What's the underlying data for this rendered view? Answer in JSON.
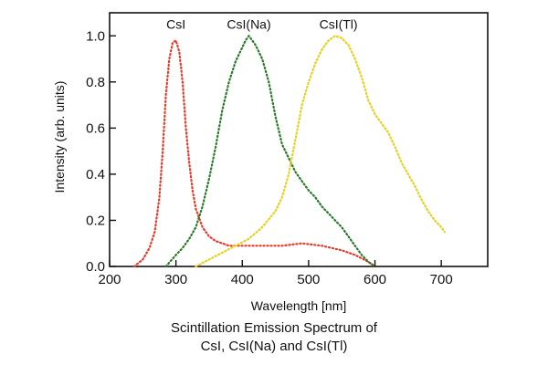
{
  "chart_data": {
    "type": "line",
    "title": "",
    "xlabel": "Wavelength [nm]",
    "ylabel": "Intensity (arb. units)",
    "xlim": [
      200,
      770
    ],
    "ylim": [
      0.0,
      1.1
    ],
    "xticks": [
      200,
      300,
      400,
      500,
      600,
      700
    ],
    "xtick_labels": [
      "200",
      "300",
      "400",
      "500",
      "600",
      "700"
    ],
    "yticks": [
      0.0,
      0.2,
      0.4,
      0.6,
      0.8,
      1.0
    ],
    "ytick_labels": [
      "0.0",
      "0.2",
      "0.4",
      "0.6",
      "0.8",
      "1.0"
    ],
    "grid": false,
    "legend": "none",
    "line_style": "dotted",
    "series": [
      {
        "name": "CsI",
        "color": "#e8392a",
        "label_at": [
          300,
          1.03
        ],
        "x": [
          237,
          250,
          260,
          268,
          275,
          280,
          285,
          290,
          295,
          300,
          305,
          310,
          315,
          320,
          325,
          330,
          340,
          350,
          360,
          370,
          380,
          400,
          430,
          460,
          490,
          520,
          550,
          570,
          590,
          600
        ],
        "y": [
          0.0,
          0.03,
          0.08,
          0.15,
          0.3,
          0.5,
          0.75,
          0.9,
          0.97,
          0.98,
          0.93,
          0.8,
          0.6,
          0.45,
          0.33,
          0.25,
          0.17,
          0.13,
          0.11,
          0.1,
          0.09,
          0.09,
          0.09,
          0.09,
          0.1,
          0.09,
          0.07,
          0.05,
          0.02,
          0.0
        ]
      },
      {
        "name": "CsI(Na)",
        "color": "#2a7a2a",
        "label_at": [
          410,
          1.03
        ],
        "x": [
          285,
          300,
          310,
          320,
          330,
          340,
          350,
          360,
          370,
          380,
          390,
          400,
          405,
          410,
          415,
          420,
          430,
          440,
          450,
          460,
          470,
          480,
          490,
          500,
          510,
          520,
          530,
          540,
          550,
          560,
          570,
          580,
          590,
          600
        ],
        "y": [
          0.0,
          0.05,
          0.08,
          0.12,
          0.17,
          0.26,
          0.38,
          0.52,
          0.68,
          0.8,
          0.89,
          0.95,
          0.98,
          1.0,
          0.98,
          0.96,
          0.9,
          0.8,
          0.65,
          0.53,
          0.47,
          0.41,
          0.37,
          0.33,
          0.3,
          0.26,
          0.23,
          0.2,
          0.17,
          0.13,
          0.09,
          0.05,
          0.02,
          0.0
        ]
      },
      {
        "name": "CsI(Tl)",
        "color": "#e6d21a",
        "label_at": [
          545,
          1.03
        ],
        "x": [
          330,
          350,
          370,
          390,
          410,
          430,
          450,
          460,
          470,
          480,
          490,
          500,
          510,
          520,
          530,
          540,
          550,
          560,
          570,
          580,
          590,
          600,
          610,
          620,
          630,
          640,
          650,
          660,
          670,
          680,
          690,
          700,
          705
        ],
        "y": [
          0.0,
          0.03,
          0.06,
          0.09,
          0.12,
          0.17,
          0.24,
          0.3,
          0.4,
          0.55,
          0.7,
          0.8,
          0.88,
          0.94,
          0.98,
          1.0,
          0.99,
          0.96,
          0.9,
          0.82,
          0.72,
          0.66,
          0.62,
          0.58,
          0.52,
          0.45,
          0.4,
          0.35,
          0.29,
          0.24,
          0.2,
          0.17,
          0.15
        ]
      }
    ]
  },
  "caption": {
    "line1": "Scintillation Emission Spectrum of",
    "line2": "CsI, CsI(Na) and CsI(Tl)"
  }
}
